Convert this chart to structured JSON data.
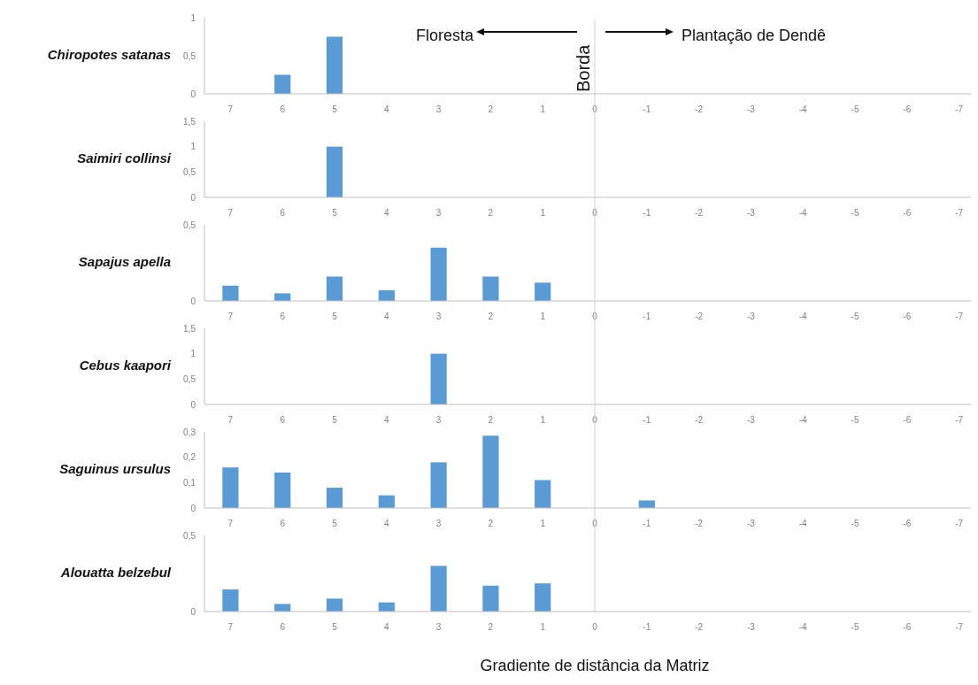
{
  "chart_data": [
    {
      "type": "bar",
      "ylabel": "Chiropotes satanas",
      "categories": [
        "7",
        "6",
        "5",
        "4",
        "3",
        "2",
        "1",
        "0",
        "-1",
        "-2",
        "-3",
        "-4",
        "-5",
        "-6",
        "-7"
      ],
      "values": [
        0,
        0.25,
        0.75,
        0,
        0,
        0,
        0,
        0,
        0,
        0,
        0,
        0,
        0,
        0,
        0
      ],
      "color": "#5b9bd5",
      "ylim": [
        0,
        1
      ],
      "yticks": [
        {
          "value": 0,
          "label": "0"
        },
        {
          "value": 0.5,
          "label": "0,5"
        },
        {
          "value": 1,
          "label": "1"
        }
      ],
      "grid": false,
      "ref_lines": [
        {
          "axis": "x",
          "value": "0",
          "label": "Borda"
        }
      ],
      "annotations": [
        "Floresta",
        "Plantação de Dendê"
      ]
    },
    {
      "type": "bar",
      "ylabel": "Saimiri collinsi",
      "categories": [
        "7",
        "6",
        "5",
        "4",
        "3",
        "2",
        "1",
        "0",
        "-1",
        "-2",
        "-3",
        "-4",
        "-5",
        "-6",
        "-7"
      ],
      "values": [
        0,
        0,
        1,
        0,
        0,
        0,
        0,
        0,
        0,
        0,
        0,
        0,
        0,
        0,
        0
      ],
      "color": "#5b9bd5",
      "ylim": [
        0,
        1.5
      ],
      "yticks": [
        {
          "value": 0,
          "label": "0"
        },
        {
          "value": 0.5,
          "label": "0,5"
        },
        {
          "value": 1,
          "label": "1"
        },
        {
          "value": 1.5,
          "label": "1,5"
        }
      ],
      "grid": false,
      "ref_lines": [
        {
          "axis": "x",
          "value": "0"
        }
      ]
    },
    {
      "type": "bar",
      "ylabel": "Sapajus apella",
      "categories": [
        "7",
        "6",
        "5",
        "4",
        "3",
        "2",
        "1",
        "0",
        "-1",
        "-2",
        "-3",
        "-4",
        "-5",
        "-6",
        "-7"
      ],
      "values": [
        0.1,
        0.05,
        0.16,
        0.07,
        0.35,
        0.16,
        0.12,
        0,
        0,
        0,
        0,
        0,
        0,
        0,
        0
      ],
      "color": "#5b9bd5",
      "ylim": [
        0,
        0.5
      ],
      "yticks": [
        {
          "value": 0,
          "label": "0"
        },
        {
          "value": 0.5,
          "label": "0,5"
        }
      ],
      "grid": false,
      "ref_lines": [
        {
          "axis": "x",
          "value": "0"
        }
      ]
    },
    {
      "type": "bar",
      "ylabel": "Cebus kaapori",
      "categories": [
        "7",
        "6",
        "5",
        "4",
        "3",
        "2",
        "1",
        "0",
        "-1",
        "-2",
        "-3",
        "-4",
        "-5",
        "-6",
        "-7"
      ],
      "values": [
        0,
        0,
        0,
        0,
        1,
        0,
        0,
        0,
        0,
        0,
        0,
        0,
        0,
        0,
        0
      ],
      "color": "#5b9bd5",
      "ylim": [
        0,
        1.5
      ],
      "yticks": [
        {
          "value": 0,
          "label": "0"
        },
        {
          "value": 0.5,
          "label": "0,5"
        },
        {
          "value": 1,
          "label": "1"
        },
        {
          "value": 1.5,
          "label": "1,5"
        }
      ],
      "grid": false,
      "ref_lines": [
        {
          "axis": "x",
          "value": "0"
        }
      ]
    },
    {
      "type": "bar",
      "ylabel": "Saguinus ursulus",
      "categories": [
        "7",
        "6",
        "5",
        "4",
        "3",
        "2",
        "1",
        "0",
        "-1",
        "-2",
        "-3",
        "-4",
        "-5",
        "-6",
        "-7"
      ],
      "values": [
        0.16,
        0.14,
        0.08,
        0.05,
        0.18,
        0.285,
        0.11,
        0,
        0.03,
        0,
        0,
        0,
        0,
        0,
        0
      ],
      "color": "#5b9bd5",
      "ylim": [
        0,
        0.3
      ],
      "yticks": [
        {
          "value": 0,
          "label": "0"
        },
        {
          "value": 0.1,
          "label": "0,1"
        },
        {
          "value": 0.2,
          "label": "0,2"
        },
        {
          "value": 0.3,
          "label": "0,3"
        }
      ],
      "grid": false,
      "ref_lines": [
        {
          "axis": "x",
          "value": "0"
        }
      ]
    },
    {
      "type": "bar",
      "ylabel": "Alouatta belzebul",
      "xlabel": "Gradiente de distância da Matriz",
      "categories": [
        "7",
        "6",
        "5",
        "4",
        "3",
        "2",
        "1",
        "0",
        "-1",
        "-2",
        "-3",
        "-4",
        "-5",
        "-6",
        "-7"
      ],
      "values": [
        0.145,
        0.05,
        0.085,
        0.06,
        0.3,
        0.17,
        0.185,
        0,
        0,
        0,
        0,
        0,
        0,
        0,
        0
      ],
      "color": "#5b9bd5",
      "ylim": [
        0,
        0.5
      ],
      "yticks": [
        {
          "value": 0,
          "label": "0"
        },
        {
          "value": 0.5,
          "label": "0,5"
        }
      ],
      "grid": false,
      "ref_lines": [
        {
          "axis": "x",
          "value": "0"
        }
      ]
    }
  ]
}
